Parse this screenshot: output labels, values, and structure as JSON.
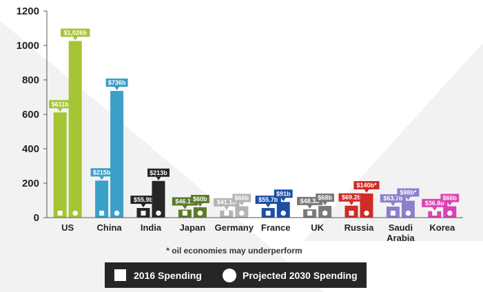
{
  "chart_data": {
    "type": "bar",
    "categories": [
      "US",
      "China",
      "India",
      "Japan",
      "Germany",
      "France",
      "UK",
      "Russia",
      "Saudi\nArabia",
      "Korea"
    ],
    "series": [
      {
        "name": "2016 Spending",
        "values": [
          611,
          215,
          55.9,
          46.1,
          41.1,
          55.7,
          48.3,
          69.2,
          63.7,
          36.8
        ]
      },
      {
        "name": "Projected 2030 Spending",
        "values": [
          1026,
          736,
          213,
          60,
          66,
          91,
          68,
          140,
          98,
          66
        ]
      }
    ],
    "data_labels": [
      [
        "$611b",
        "$215b",
        "$55.9b",
        "$46.1b",
        "$41.1b",
        "$55.7b",
        "$48.3b",
        "$69.2b",
        "$63.7b",
        "$36.8b"
      ],
      [
        "$1,026b",
        "$736b",
        "$213b",
        "$60b",
        "$66b",
        "$91b",
        "$68b",
        "$140b*",
        "$98b*",
        "$66b"
      ]
    ],
    "yticks": [
      "0",
      "200",
      "400",
      "600",
      "800",
      "1000",
      "1200"
    ],
    "ylim": [
      0,
      1200
    ],
    "title": "",
    "xlabel": "",
    "ylabel": "",
    "colors": [
      [
        "#a6c535",
        "#a6c535"
      ],
      [
        "#3aa0c8",
        "#3aa0c8"
      ],
      [
        "#262626",
        "#262626"
      ],
      [
        "#5b7a2a",
        "#5b7a2a"
      ],
      [
        "#b4b4b4",
        "#b4b4b4"
      ],
      [
        "#1d4ea2",
        "#1d4ea2"
      ],
      [
        "#7a7a7a",
        "#7a7a7a"
      ],
      [
        "#d02b26",
        "#d02b26"
      ],
      [
        "#8d7fcd",
        "#8d7fcd"
      ],
      [
        "#db42b4",
        "#db42b4"
      ]
    ],
    "grid": false,
    "legend_position": "bottom"
  },
  "footnote": "* oil economies may underperform",
  "legend": {
    "items": [
      {
        "label": "2016 Spending",
        "icon": "square-icon"
      },
      {
        "label": "Projected 2030 Spending",
        "icon": "circle-icon"
      }
    ],
    "background": "#262626"
  }
}
